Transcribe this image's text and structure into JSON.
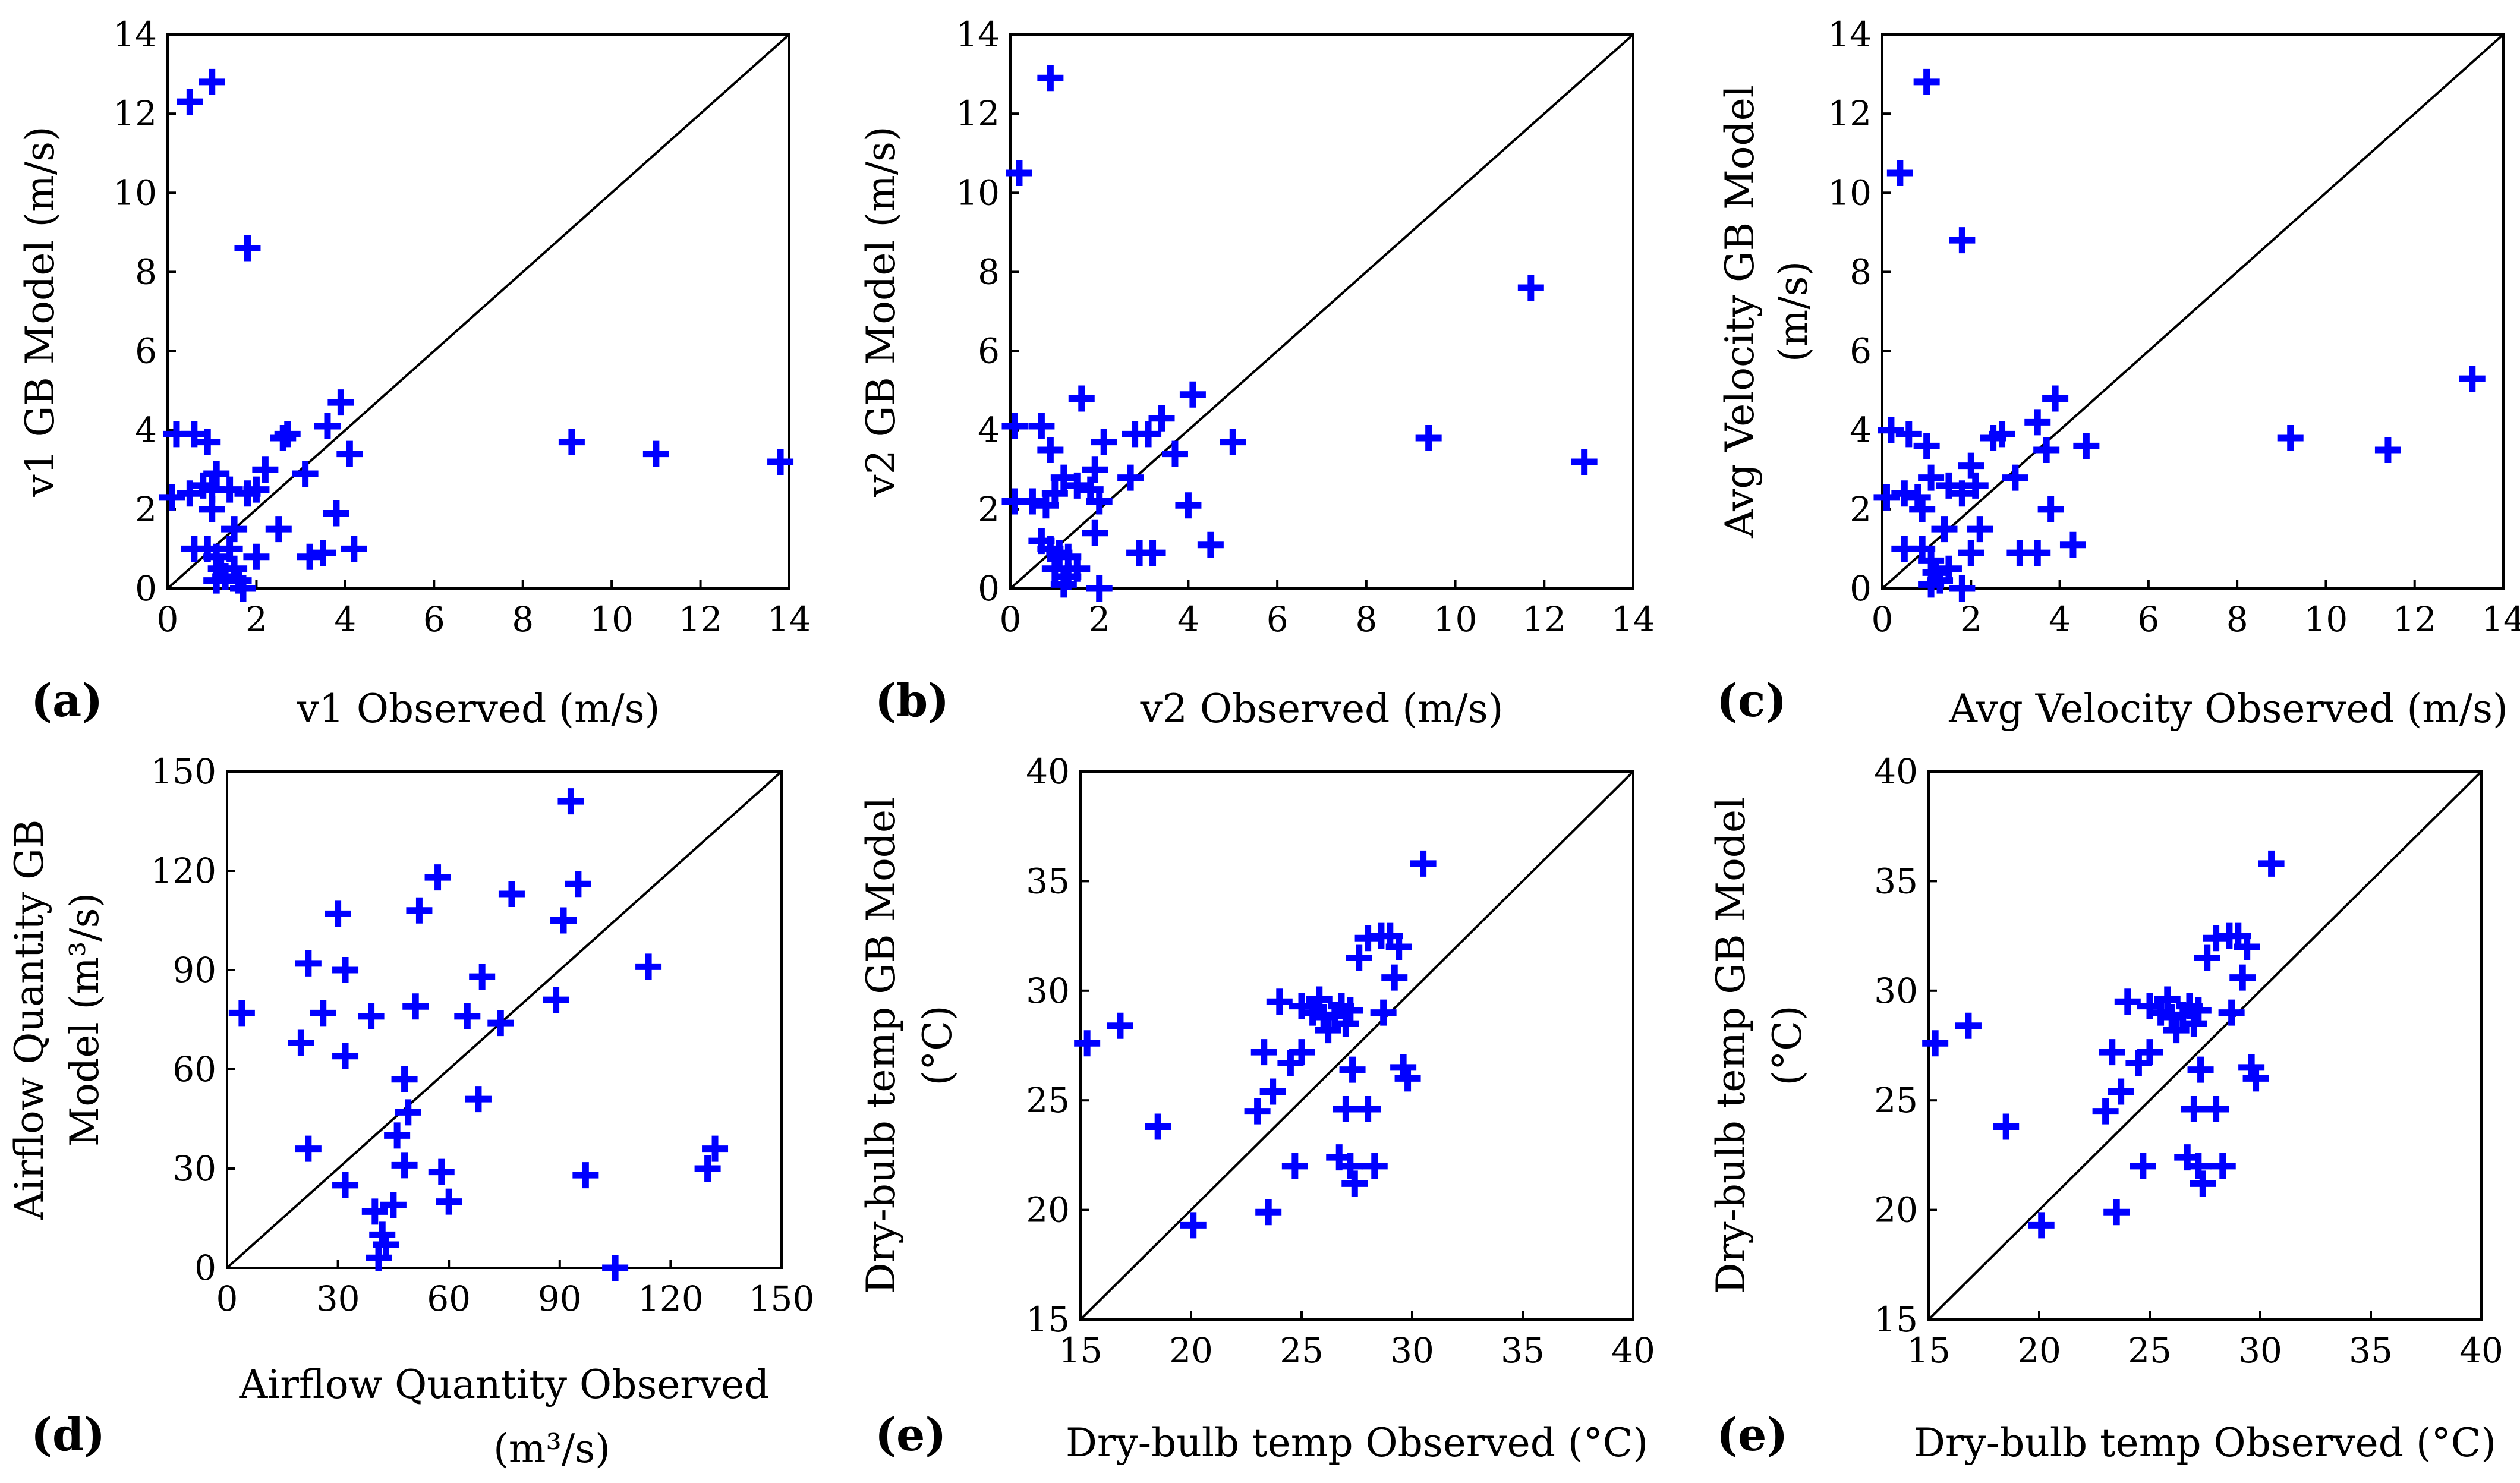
{
  "figure": {
    "marker_color": "#0000ff",
    "marker": "plus"
  },
  "chart_data": [
    {
      "id": "a",
      "panel_label": "(a)",
      "type": "scatter",
      "xlabel": "v1 Observed (m/s)",
      "ylabel": "v1 GB Model  (m/s)",
      "xlim": [
        0,
        14
      ],
      "ylim": [
        0,
        14
      ],
      "xticks": [
        "0",
        "2",
        "4",
        "6",
        "8",
        "10",
        "12",
        "14"
      ],
      "yticks": [
        "0",
        "2",
        "4",
        "6",
        "8",
        "10",
        "12",
        "14"
      ],
      "tick_values_x": [
        0,
        2,
        4,
        6,
        8,
        10,
        12,
        14
      ],
      "tick_values_y": [
        0,
        2,
        4,
        6,
        8,
        10,
        12,
        14
      ],
      "reference_line": "y = x",
      "points": [
        [
          0.5,
          12.3
        ],
        [
          1.0,
          12.8
        ],
        [
          1.8,
          8.6
        ],
        [
          0.2,
          3.9
        ],
        [
          0.6,
          3.9
        ],
        [
          0.9,
          3.7
        ],
        [
          0.1,
          2.3
        ],
        [
          0.5,
          2.4
        ],
        [
          0.8,
          2.6
        ],
        [
          1.0,
          2.5
        ],
        [
          1.1,
          2.9
        ],
        [
          1.4,
          2.5
        ],
        [
          1.8,
          2.4
        ],
        [
          2.0,
          2.5
        ],
        [
          2.2,
          3.0
        ],
        [
          1.0,
          2.0
        ],
        [
          1.5,
          1.5
        ],
        [
          1.4,
          1.0
        ],
        [
          0.6,
          1.0
        ],
        [
          0.9,
          1.0
        ],
        [
          1.1,
          0.8
        ],
        [
          1.2,
          0.5
        ],
        [
          1.5,
          0.5
        ],
        [
          1.3,
          0.3
        ],
        [
          1.6,
          0.2
        ],
        [
          1.1,
          0.2
        ],
        [
          1.7,
          0.0
        ],
        [
          2.0,
          0.8
        ],
        [
          2.5,
          1.5
        ],
        [
          2.6,
          3.8
        ],
        [
          2.7,
          3.9
        ],
        [
          3.1,
          2.9
        ],
        [
          3.6,
          4.1
        ],
        [
          3.9,
          4.7
        ],
        [
          4.1,
          3.4
        ],
        [
          3.8,
          1.9
        ],
        [
          3.2,
          0.8
        ],
        [
          3.5,
          0.9
        ],
        [
          4.2,
          1.0
        ],
        [
          9.1,
          3.7
        ],
        [
          11.0,
          3.4
        ],
        [
          13.8,
          3.2
        ]
      ]
    },
    {
      "id": "b",
      "panel_label": "(b)",
      "type": "scatter",
      "xlabel": "v2 Observed (m/s)",
      "ylabel": "v2 GB Model  (m/s)",
      "xlim": [
        0,
        14
      ],
      "ylim": [
        0,
        14
      ],
      "xticks": [
        "0",
        "2",
        "4",
        "6",
        "8",
        "10",
        "12",
        "14"
      ],
      "yticks": [
        "0",
        "2",
        "4",
        "6",
        "8",
        "10",
        "12",
        "14"
      ],
      "tick_values_x": [
        0,
        2,
        4,
        6,
        8,
        10,
        12,
        14
      ],
      "tick_values_y": [
        0,
        2,
        4,
        6,
        8,
        10,
        12,
        14
      ],
      "reference_line": "y = x",
      "points": [
        [
          0.9,
          12.9
        ],
        [
          0.2,
          10.5
        ],
        [
          0.1,
          4.1
        ],
        [
          0.7,
          4.1
        ],
        [
          0.9,
          3.5
        ],
        [
          0.1,
          2.2
        ],
        [
          0.5,
          2.2
        ],
        [
          0.8,
          2.1
        ],
        [
          1.0,
          2.4
        ],
        [
          1.2,
          2.8
        ],
        [
          1.5,
          2.6
        ],
        [
          1.6,
          4.8
        ],
        [
          1.9,
          3.0
        ],
        [
          2.1,
          3.7
        ],
        [
          1.8,
          2.5
        ],
        [
          2.0,
          2.2
        ],
        [
          1.9,
          1.4
        ],
        [
          0.7,
          1.2
        ],
        [
          0.9,
          1.0
        ],
        [
          1.1,
          0.9
        ],
        [
          1.3,
          0.8
        ],
        [
          1.0,
          0.5
        ],
        [
          1.3,
          0.3
        ],
        [
          1.5,
          0.5
        ],
        [
          1.2,
          0.1
        ],
        [
          2.0,
          0.0
        ],
        [
          2.7,
          2.8
        ],
        [
          2.8,
          3.9
        ],
        [
          3.1,
          3.9
        ],
        [
          3.4,
          4.3
        ],
        [
          3.7,
          3.4
        ],
        [
          4.1,
          4.9
        ],
        [
          4.0,
          2.1
        ],
        [
          2.9,
          0.9
        ],
        [
          3.2,
          0.9
        ],
        [
          4.5,
          1.1
        ],
        [
          5.0,
          3.7
        ],
        [
          9.4,
          3.8
        ],
        [
          11.7,
          7.6
        ],
        [
          12.9,
          3.2
        ]
      ]
    },
    {
      "id": "c",
      "panel_label": "(c)",
      "type": "scatter",
      "xlabel": "Avg Velocity Observed (m/s)",
      "ylabel": "Avg Velocity GB Model (m/s)",
      "xlim": [
        0,
        14
      ],
      "ylim": [
        0,
        14
      ],
      "xticks": [
        "0",
        "2",
        "4",
        "6",
        "8",
        "10",
        "12",
        "14"
      ],
      "yticks": [
        "0",
        "2",
        "4",
        "6",
        "8",
        "10",
        "12",
        "14"
      ],
      "tick_values_x": [
        0,
        2,
        4,
        6,
        8,
        10,
        12,
        14
      ],
      "tick_values_y": [
        0,
        2,
        4,
        6,
        8,
        10,
        12,
        14
      ],
      "reference_line": "y = x",
      "points": [
        [
          1.0,
          12.8
        ],
        [
          0.4,
          10.5
        ],
        [
          1.8,
          8.8
        ],
        [
          0.2,
          4.0
        ],
        [
          0.6,
          3.9
        ],
        [
          1.0,
          3.6
        ],
        [
          0.1,
          2.3
        ],
        [
          0.5,
          2.4
        ],
        [
          0.8,
          2.3
        ],
        [
          1.1,
          2.8
        ],
        [
          1.5,
          2.6
        ],
        [
          1.8,
          2.4
        ],
        [
          2.0,
          3.1
        ],
        [
          2.1,
          2.6
        ],
        [
          0.9,
          2.0
        ],
        [
          1.4,
          1.5
        ],
        [
          0.5,
          1.0
        ],
        [
          0.9,
          1.0
        ],
        [
          1.1,
          0.7
        ],
        [
          1.2,
          0.4
        ],
        [
          1.3,
          0.2
        ],
        [
          1.5,
          0.5
        ],
        [
          1.1,
          0.1
        ],
        [
          1.8,
          0.0
        ],
        [
          2.0,
          0.9
        ],
        [
          2.2,
          1.5
        ],
        [
          2.5,
          3.8
        ],
        [
          2.7,
          3.9
        ],
        [
          3.0,
          2.8
        ],
        [
          3.5,
          4.2
        ],
        [
          3.9,
          4.8
        ],
        [
          3.7,
          3.5
        ],
        [
          3.8,
          2.0
        ],
        [
          3.1,
          0.9
        ],
        [
          3.5,
          0.9
        ],
        [
          4.3,
          1.1
        ],
        [
          4.6,
          3.6
        ],
        [
          9.2,
          3.8
        ],
        [
          11.4,
          3.5
        ],
        [
          13.3,
          5.3
        ]
      ]
    },
    {
      "id": "d",
      "panel_label": "(d)",
      "type": "scatter",
      "xlabel": "Airflow Quantity Observed",
      "xlabel_line2": "(m³/s)",
      "ylabel": "Airflow Quantity GB",
      "ylabel_line2": "Model  (m³/s)",
      "xlim": [
        0,
        150
      ],
      "ylim": [
        0,
        150
      ],
      "xticks": [
        "0",
        "30",
        "60",
        "90",
        "120",
        "150"
      ],
      "yticks": [
        "0",
        "30",
        "60",
        "90",
        "120",
        "150"
      ],
      "tick_values_x": [
        0,
        30,
        60,
        90,
        120,
        150
      ],
      "tick_values_y": [
        0,
        30,
        60,
        90,
        120,
        150
      ],
      "reference_line": "y = x",
      "points": [
        [
          4,
          77
        ],
        [
          20,
          68
        ],
        [
          22,
          92
        ],
        [
          22,
          36
        ],
        [
          26,
          77
        ],
        [
          30,
          107
        ],
        [
          32,
          90
        ],
        [
          32,
          64
        ],
        [
          32,
          25
        ],
        [
          39,
          76
        ],
        [
          42,
          10
        ],
        [
          40,
          17
        ],
        [
          43,
          7
        ],
        [
          45,
          19
        ],
        [
          46,
          40
        ],
        [
          48,
          57
        ],
        [
          49,
          47
        ],
        [
          48,
          31
        ],
        [
          51,
          79
        ],
        [
          52,
          108
        ],
        [
          57,
          118
        ],
        [
          58,
          29
        ],
        [
          60,
          20
        ],
        [
          65,
          76
        ],
        [
          68,
          51
        ],
        [
          69,
          88
        ],
        [
          74,
          74
        ],
        [
          77,
          113
        ],
        [
          89,
          81
        ],
        [
          91,
          105
        ],
        [
          93,
          141
        ],
        [
          95,
          116
        ],
        [
          97,
          28
        ],
        [
          105,
          0
        ],
        [
          114,
          91
        ],
        [
          130,
          30
        ],
        [
          132,
          36
        ],
        [
          41,
          3
        ]
      ]
    },
    {
      "id": "e1",
      "panel_label": "(e)",
      "type": "scatter",
      "xlabel": "Dry-bulb temp Observed (°C)",
      "ylabel": "Dry-bulb temp GB Model (°C)",
      "xlim": [
        15,
        40
      ],
      "ylim": [
        15,
        40
      ],
      "xticks": [
        "15",
        "20",
        "25",
        "30",
        "35",
        "40"
      ],
      "yticks": [
        "15",
        "20",
        "25",
        "30",
        "35",
        "40"
      ],
      "tick_values_x": [
        15,
        20,
        25,
        30,
        35,
        40
      ],
      "tick_values_y": [
        15,
        20,
        25,
        30,
        35,
        40
      ],
      "reference_line": "y = x",
      "points": [
        [
          15.3,
          27.6
        ],
        [
          16.8,
          28.4
        ],
        [
          18.5,
          23.8
        ],
        [
          20.1,
          19.3
        ],
        [
          23.0,
          24.5
        ],
        [
          23.3,
          27.2
        ],
        [
          23.5,
          19.9
        ],
        [
          23.7,
          25.4
        ],
        [
          24.0,
          29.5
        ],
        [
          24.5,
          26.7
        ],
        [
          24.7,
          22.0
        ],
        [
          25.0,
          27.2
        ],
        [
          25.0,
          29.3
        ],
        [
          25.5,
          29.0
        ],
        [
          25.8,
          29.6
        ],
        [
          26.0,
          28.8
        ],
        [
          26.2,
          28.2
        ],
        [
          26.5,
          28.9
        ],
        [
          26.8,
          29.3
        ],
        [
          27.0,
          28.5
        ],
        [
          27.2,
          29.1
        ],
        [
          26.7,
          22.4
        ],
        [
          27.0,
          24.6
        ],
        [
          27.2,
          22.0
        ],
        [
          27.4,
          21.2
        ],
        [
          27.3,
          26.4
        ],
        [
          27.6,
          31.5
        ],
        [
          28.0,
          24.6
        ],
        [
          28.0,
          32.4
        ],
        [
          28.3,
          22.0
        ],
        [
          28.6,
          32.5
        ],
        [
          28.7,
          29.0
        ],
        [
          29.0,
          32.5
        ],
        [
          29.2,
          30.6
        ],
        [
          29.4,
          32.0
        ],
        [
          29.6,
          26.5
        ],
        [
          29.8,
          26.0
        ],
        [
          30.5,
          35.8
        ]
      ]
    },
    {
      "id": "e2",
      "panel_label": "(e)",
      "type": "scatter",
      "xlabel": "Dry-bulb temp Observed (°C)",
      "ylabel": "Dry-bulb temp GB Model (°C)",
      "xlim": [
        15,
        40
      ],
      "ylim": [
        15,
        40
      ],
      "xticks": [
        "15",
        "20",
        "25",
        "30",
        "35",
        "40"
      ],
      "yticks": [
        "15",
        "20",
        "25",
        "30",
        "35",
        "40"
      ],
      "tick_values_x": [
        15,
        20,
        25,
        30,
        35,
        40
      ],
      "tick_values_y": [
        15,
        20,
        25,
        30,
        35,
        40
      ],
      "reference_line": "y = x",
      "points": [
        [
          15.3,
          27.6
        ],
        [
          16.8,
          28.4
        ],
        [
          18.5,
          23.8
        ],
        [
          20.1,
          19.3
        ],
        [
          23.0,
          24.5
        ],
        [
          23.3,
          27.2
        ],
        [
          23.5,
          19.9
        ],
        [
          23.7,
          25.4
        ],
        [
          24.0,
          29.5
        ],
        [
          24.5,
          26.7
        ],
        [
          24.7,
          22.0
        ],
        [
          25.0,
          27.2
        ],
        [
          25.0,
          29.3
        ],
        [
          25.5,
          29.0
        ],
        [
          25.8,
          29.6
        ],
        [
          26.0,
          28.8
        ],
        [
          26.2,
          28.2
        ],
        [
          26.5,
          28.9
        ],
        [
          26.8,
          29.3
        ],
        [
          27.0,
          28.5
        ],
        [
          27.2,
          29.1
        ],
        [
          26.7,
          22.4
        ],
        [
          27.0,
          24.6
        ],
        [
          27.2,
          22.0
        ],
        [
          27.4,
          21.2
        ],
        [
          27.3,
          26.4
        ],
        [
          27.6,
          31.5
        ],
        [
          28.0,
          24.6
        ],
        [
          28.0,
          32.4
        ],
        [
          28.3,
          22.0
        ],
        [
          28.6,
          32.5
        ],
        [
          28.7,
          29.0
        ],
        [
          29.0,
          32.5
        ],
        [
          29.2,
          30.6
        ],
        [
          29.4,
          32.0
        ],
        [
          29.6,
          26.5
        ],
        [
          29.8,
          26.0
        ],
        [
          30.5,
          35.8
        ]
      ]
    }
  ]
}
